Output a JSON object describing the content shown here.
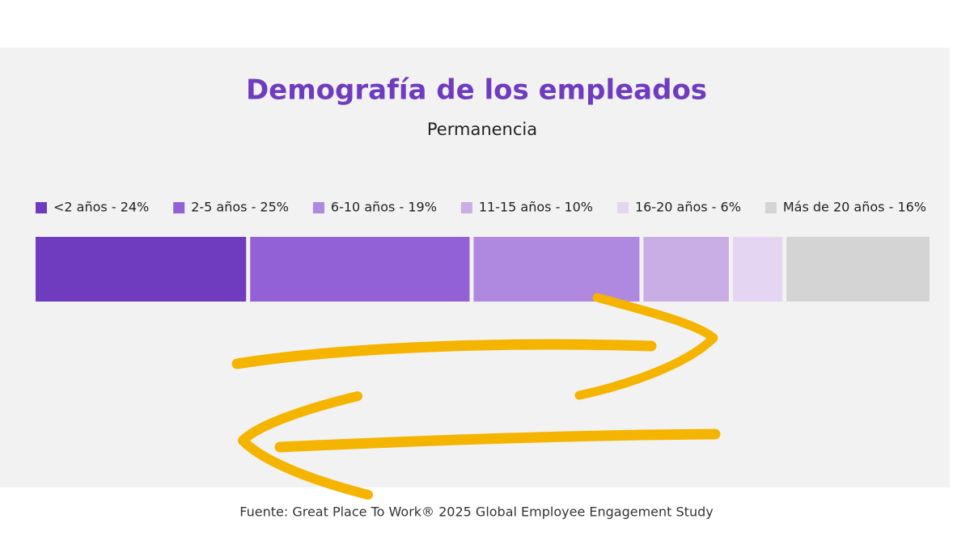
{
  "chart_data": {
    "type": "bar",
    "orientation": "horizontal",
    "stacked": true,
    "title": "Demografía de los empleados",
    "subtitle": "Permanencia",
    "series": [
      {
        "name": "<2 años - 24%",
        "color": "#6f3cc0",
        "values": [
          24
        ]
      },
      {
        "name": "2-5 años - 25%",
        "color": "#9361d6",
        "values": [
          25
        ]
      },
      {
        "name": "6-10 años - 19%",
        "color": "#ae89df",
        "values": [
          19
        ]
      },
      {
        "name": "11-15 años - 10%",
        "color": "#c9aee6",
        "values": [
          10
        ]
      },
      {
        "name": "16-20 años - 6%",
        "color": "#e4d6f2",
        "values": [
          6
        ]
      },
      {
        "name": "Más de 20 años - 16%",
        "color": "#d4d4d4",
        "values": [
          16
        ]
      }
    ],
    "source": "Fuente: Great Place To Work® 2025 Global Employee Engagement Study"
  }
}
